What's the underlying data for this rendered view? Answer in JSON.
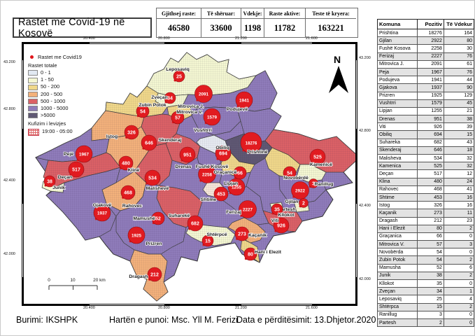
{
  "header": {
    "title": "Rastet me Covid-19 në Kosovë"
  },
  "stats": [
    {
      "label": "Gjithsej raste:",
      "value": "46580"
    },
    {
      "label": "Të shëruar:",
      "value": "33600"
    },
    {
      "label": "Vdekje:",
      "value": "1198"
    },
    {
      "label": "Raste aktive:",
      "value": "11782"
    },
    {
      "label": "Teste të kryera:",
      "value": "163221"
    }
  ],
  "legend": {
    "point_label": "Rastet me Covid19",
    "point_color": "#e0161c",
    "totals_title": "Rastet totale",
    "classes": [
      {
        "label": "0 - 1",
        "color": "#e2e9f2"
      },
      {
        "label": "1 - 50",
        "color": "#f4f7d2"
      },
      {
        "label": "50 - 200",
        "color": "#f0d88a"
      },
      {
        "label": "200 - 500",
        "color": "#f3b17b"
      },
      {
        "label": "500 - 1000",
        "color": "#db6166"
      },
      {
        "label": "1000 - 5000",
        "color": "#8f7cba"
      },
      {
        "label": ">5000",
        "color": "#5f5873"
      }
    ],
    "restriction_title": "Kufizim i levizjes",
    "restriction_label": "19:00 - 05:00"
  },
  "map": {
    "north_label": "N",
    "scalebar": {
      "ticks": [
        "0",
        "10",
        "20 km"
      ]
    },
    "x_ticks": [
      {
        "label": "20.400",
        "pos": 97
      },
      {
        "label": "20.800",
        "pos": 204
      },
      {
        "label": "21.200",
        "pos": 314
      },
      {
        "label": "21.600",
        "pos": 415
      }
    ],
    "y_ticks_left": [
      {
        "label": "43.200",
        "pos": 26
      },
      {
        "label": "42.800",
        "pos": 93
      },
      {
        "label": "42.400",
        "pos": 195
      },
      {
        "label": "42.000",
        "pos": 300
      }
    ],
    "y_ticks_right": [
      {
        "label": "43.200",
        "pos": 20
      },
      {
        "label": "42.800",
        "pos": 124
      },
      {
        "label": "42.400",
        "pos": 231
      },
      {
        "label": "42.000",
        "pos": 336
      }
    ],
    "municipalities": [
      {
        "name": "Leposaviq",
        "value": 25
      },
      {
        "name": "Zveçan",
        "value": 34
      },
      {
        "name": "Zubin Potok",
        "value": 54
      },
      {
        "name": "Mitrovica J.",
        "value": 2091
      },
      {
        "name": "Mitrovica V.",
        "value": 57
      },
      {
        "name": "Vushtrri",
        "value": 1579
      },
      {
        "name": "Podujevë",
        "value": 1941
      },
      {
        "name": "Istog",
        "value": 326
      },
      {
        "name": "Skenderaj",
        "value": 646
      },
      {
        "name": "Pejë",
        "value": 1967
      },
      {
        "name": "Klinë",
        "value": 480
      },
      {
        "name": "Drenas",
        "value": 951
      },
      {
        "name": "Obiliq",
        "value": 694
      },
      {
        "name": "Prishtinë",
        "value": 18276
      },
      {
        "name": "Fushë Kosovë",
        "value": 2258
      },
      {
        "name": "Graçanicë",
        "value": 66
      },
      {
        "name": "Novobërdë",
        "value": 54
      },
      {
        "name": "Kamenicë",
        "value": 525
      },
      {
        "name": "Ranillug",
        "value": 3
      },
      {
        "name": "Gjilan",
        "value": 2922
      },
      {
        "name": "Partesh",
        "value": 2
      },
      {
        "name": "Kllokot",
        "value": 35
      },
      {
        "name": "Viti",
        "value": 926
      },
      {
        "name": "Malishevë",
        "value": 534
      },
      {
        "name": "Lipjan",
        "value": 1255
      },
      {
        "name": "Shtime",
        "value": 453
      },
      {
        "name": "Ferizaj",
        "value": 2227
      },
      {
        "name": "Rahovec",
        "value": 468
      },
      {
        "name": "Gjakovë",
        "value": 1937
      },
      {
        "name": "Deçan",
        "value": 517
      },
      {
        "name": "Junik",
        "value": 38
      },
      {
        "name": "Suharekë",
        "value": 682
      },
      {
        "name": "Mamushë",
        "value": 52
      },
      {
        "name": "Prizren",
        "value": 1925
      },
      {
        "name": "Shtërpcë",
        "value": 15
      },
      {
        "name": "Kaçanik",
        "value": 273
      },
      {
        "name": "Hani i Elezit",
        "value": 80
      },
      {
        "name": "Dragash",
        "value": 212
      }
    ]
  },
  "table": {
    "headers": [
      "Komuna",
      "Pozitiv",
      "Të Vdekur"
    ],
    "rows": [
      [
        "Prishtina",
        "18276",
        "164"
      ],
      [
        "Gjilan",
        "2922",
        "80"
      ],
      [
        "Fushë Kosova",
        "2258",
        "30"
      ],
      [
        "Ferizaj",
        "2227",
        "76"
      ],
      [
        "Mitrovica J.",
        "2091",
        "61"
      ],
      [
        "Peja",
        "1967",
        "76"
      ],
      [
        "Podujeva",
        "1941",
        "44"
      ],
      [
        "Gjakova",
        "1937",
        "90"
      ],
      [
        "Prizren",
        "1925",
        "129"
      ],
      [
        "Vushtrri",
        "1579",
        "45"
      ],
      [
        "Lipjan",
        "1255",
        "21"
      ],
      [
        "Drenas",
        "951",
        "38"
      ],
      [
        "Viti",
        "926",
        "39"
      ],
      [
        "Obiliq",
        "694",
        "15"
      ],
      [
        "Suhareka",
        "682",
        "43"
      ],
      [
        "Skenderaj",
        "646",
        "18"
      ],
      [
        "Malisheva",
        "534",
        "32"
      ],
      [
        "Kamenica",
        "525",
        "32"
      ],
      [
        "Deçan",
        "517",
        "12"
      ],
      [
        "Klina",
        "480",
        "24"
      ],
      [
        "Rahovec",
        "468",
        "41"
      ],
      [
        "Shtime",
        "453",
        "16"
      ],
      [
        "Istog",
        "326",
        "16"
      ],
      [
        "Kaçanik",
        "273",
        "11"
      ],
      [
        "Dragash",
        "212",
        "23"
      ],
      [
        "Hani i Elezit",
        "80",
        "2"
      ],
      [
        "Graçanica",
        "66",
        "0"
      ],
      [
        "Mitrovica V.",
        "57",
        "3"
      ],
      [
        "Novobërda",
        "54",
        "0"
      ],
      [
        "Zubin Potok",
        "54",
        "2"
      ],
      [
        "Mamusha",
        "52",
        "6"
      ],
      [
        "Junik",
        "38",
        "2"
      ],
      [
        "Kllokot",
        "35",
        "0"
      ],
      [
        "Zveçan",
        "34",
        "1"
      ],
      [
        "Leposaviq",
        "25",
        "4"
      ],
      [
        "Shtërpca",
        "15",
        "2"
      ],
      [
        "Ranillug",
        "3",
        "0"
      ],
      [
        "Partesh",
        "2",
        "0"
      ]
    ]
  },
  "footer": {
    "source": "Burimi: IKSHPK",
    "author": "Hartën e punoi: Msc. Yll M. Ferizi",
    "updated": "Data e përditësimit: 13.Dhjetor.2020"
  }
}
